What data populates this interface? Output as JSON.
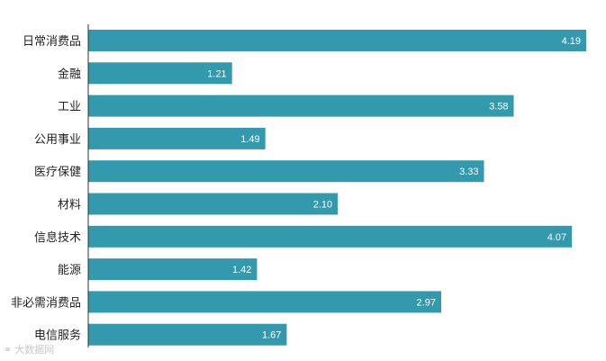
{
  "chart_data": {
    "type": "bar",
    "orientation": "horizontal",
    "categories": [
      "日常消费品",
      "金融",
      "工业",
      "公用事业",
      "医疗保健",
      "材料",
      "信息技术",
      "能源",
      "非必需消费品",
      "电信服务"
    ],
    "values": [
      4.19,
      1.21,
      3.58,
      1.49,
      3.33,
      2.1,
      4.07,
      1.42,
      2.97,
      1.67
    ],
    "value_labels": [
      "4.19",
      "1.21",
      "3.58",
      "1.49",
      "3.33",
      "2.10",
      "4.07",
      "1.42",
      "2.97",
      "1.67"
    ],
    "bar_color": "#3399ad",
    "axis_color": "#333333",
    "xlim": [
      0,
      4.19
    ],
    "grid": false,
    "legend": "none"
  },
  "watermark": {
    "text": "大数据网",
    "icon": "weibo-icon"
  }
}
